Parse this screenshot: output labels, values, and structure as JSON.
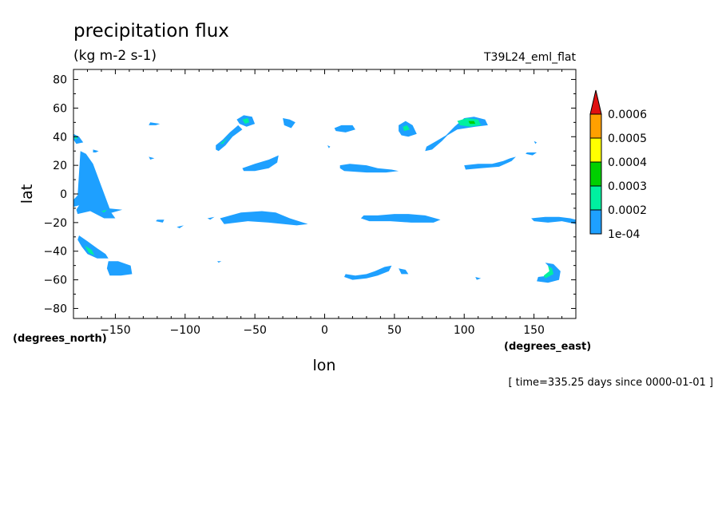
{
  "chart_data": {
    "type": "heatmap",
    "title": "precipitation flux",
    "subtitle": "(kg m-2 s-1)",
    "dataset_label": "T39L24_eml_flat",
    "xlabel": "lon",
    "ylabel": "lat",
    "x_units": "(degrees_east)",
    "y_units": "(degrees_north)",
    "time_label": "[ time=335.25 days since 0000-01-01 ]",
    "xlim": [
      -180,
      180
    ],
    "ylim": [
      -87,
      87
    ],
    "xticks": [
      -150,
      -100,
      -50,
      0,
      50,
      100,
      150
    ],
    "yticks": [
      -80,
      -60,
      -40,
      -20,
      0,
      20,
      40,
      60,
      80
    ],
    "colorbar": {
      "labels": [
        "1e-04",
        "0.0002",
        "0.0003",
        "0.0004",
        "0.0005",
        "0.0006"
      ],
      "colors": [
        "#1ea0ff",
        "#00f0a0",
        "#00d000",
        "#ffff00",
        "#ffa000",
        "#e01010"
      ],
      "extend": "max"
    },
    "regions": [
      {
        "level": 1,
        "points": [
          [
            -180,
            42
          ],
          [
            -176,
            40
          ],
          [
            -173,
            36
          ],
          [
            -178,
            35
          ],
          [
            -180,
            38
          ]
        ]
      },
      {
        "level": 2,
        "points": [
          [
            -179,
            41
          ],
          [
            -177,
            39
          ],
          [
            -179,
            38
          ]
        ]
      },
      {
        "level": 1,
        "points": [
          [
            -166,
            31
          ],
          [
            -162,
            30
          ],
          [
            -164,
            29
          ],
          [
            -166,
            29
          ]
        ]
      },
      {
        "level": 1,
        "points": [
          [
            -175,
            30
          ],
          [
            -171,
            28
          ],
          [
            -166,
            21
          ],
          [
            -153,
            -13
          ],
          [
            -150,
            -17
          ],
          [
            -158,
            -17
          ],
          [
            -168,
            -12
          ],
          [
            -177,
            -14
          ],
          [
            -178,
            -11
          ],
          [
            -176,
            -8
          ],
          [
            -180,
            -9
          ],
          [
            -180,
            -4
          ],
          [
            -177,
            -1
          ]
        ]
      },
      {
        "level": 1,
        "points": [
          [
            -163,
            -11
          ],
          [
            -156,
            -10
          ],
          [
            -145,
            -11
          ],
          [
            -152,
            -13
          ],
          [
            -161,
            -15
          ],
          [
            -165,
            -13
          ]
        ]
      },
      {
        "level": 2,
        "points": [
          [
            -160,
            -12
          ],
          [
            -156,
            -11
          ],
          [
            -158,
            -13
          ]
        ]
      },
      {
        "level": 1,
        "points": [
          [
            -176,
            -29
          ],
          [
            -170,
            -33
          ],
          [
            -163,
            -38
          ],
          [
            -157,
            -42
          ],
          [
            -155,
            -45
          ],
          [
            -163,
            -45
          ],
          [
            -170,
            -42
          ],
          [
            -174,
            -37
          ],
          [
            -177,
            -32
          ]
        ]
      },
      {
        "level": 2,
        "points": [
          [
            -172,
            -36
          ],
          [
            -167,
            -39
          ],
          [
            -165,
            -43
          ],
          [
            -169,
            -41
          ]
        ]
      },
      {
        "level": 1,
        "points": [
          [
            -155,
            -47
          ],
          [
            -148,
            -47
          ],
          [
            -139,
            -50
          ],
          [
            -138,
            -56
          ],
          [
            -146,
            -57
          ],
          [
            -154,
            -57
          ],
          [
            -156,
            -52
          ]
        ]
      },
      {
        "level": 1,
        "points": [
          [
            -78,
            34
          ],
          [
            -73,
            38
          ],
          [
            -68,
            43
          ],
          [
            -62,
            48
          ],
          [
            -59,
            45
          ],
          [
            -66,
            40
          ],
          [
            -71,
            34
          ],
          [
            -76,
            30
          ],
          [
            -78,
            31
          ]
        ]
      },
      {
        "level": 2,
        "points": [
          [
            -75,
            35
          ],
          [
            -70,
            39
          ],
          [
            -66,
            42
          ],
          [
            -69,
            40
          ],
          [
            -73,
            35
          ]
        ]
      },
      {
        "level": 1,
        "points": [
          [
            -63,
            52
          ],
          [
            -58,
            55
          ],
          [
            -52,
            54
          ],
          [
            -50,
            49
          ],
          [
            -56,
            47
          ],
          [
            -61,
            49
          ]
        ]
      },
      {
        "level": 2,
        "points": [
          [
            -59,
            52
          ],
          [
            -55,
            53
          ],
          [
            -54,
            50
          ],
          [
            -57,
            49
          ]
        ]
      },
      {
        "level": 1,
        "points": [
          [
            -30,
            53
          ],
          [
            -25,
            52
          ],
          [
            -21,
            50
          ],
          [
            -24,
            46
          ],
          [
            -29,
            48
          ]
        ]
      },
      {
        "level": 1,
        "points": [
          [
            -59,
            18
          ],
          [
            -50,
            21
          ],
          [
            -40,
            24
          ],
          [
            -33,
            27
          ],
          [
            -34,
            22
          ],
          [
            -40,
            18
          ],
          [
            -50,
            16
          ],
          [
            -58,
            16
          ]
        ]
      },
      {
        "level": 1,
        "points": [
          [
            -125,
            50
          ],
          [
            -118,
            49
          ],
          [
            -121,
            48
          ],
          [
            -126,
            48
          ]
        ]
      },
      {
        "level": 1,
        "points": [
          [
            -126,
            26
          ],
          [
            -122,
            25
          ],
          [
            -125,
            24
          ]
        ]
      },
      {
        "level": 1,
        "points": [
          [
            -75,
            -17
          ],
          [
            -60,
            -13
          ],
          [
            -45,
            -12
          ],
          [
            -35,
            -13
          ],
          [
            -25,
            -17
          ],
          [
            -12,
            -21
          ],
          [
            -20,
            -22
          ],
          [
            -40,
            -20
          ],
          [
            -55,
            -19
          ],
          [
            -72,
            -21
          ]
        ]
      },
      {
        "level": 1,
        "points": [
          [
            -120,
            -18
          ],
          [
            -115,
            -18
          ],
          [
            -116,
            -20
          ],
          [
            -121,
            -19
          ]
        ]
      },
      {
        "level": 1,
        "points": [
          [
            -106,
            -23
          ],
          [
            -101,
            -22
          ],
          [
            -104,
            -24
          ]
        ]
      },
      {
        "level": 1,
        "points": [
          [
            -84,
            -17
          ],
          [
            -79,
            -16
          ],
          [
            -82,
            -18
          ]
        ]
      },
      {
        "level": 1,
        "points": [
          [
            -77,
            -47
          ],
          [
            -74,
            -47
          ],
          [
            -76,
            -48
          ]
        ]
      },
      {
        "level": 1,
        "points": [
          [
            7,
            46
          ],
          [
            12,
            48
          ],
          [
            20,
            48
          ],
          [
            22,
            45
          ],
          [
            15,
            43
          ],
          [
            8,
            44
          ]
        ]
      },
      {
        "level": 1,
        "points": [
          [
            2,
            34
          ],
          [
            4,
            33
          ],
          [
            3,
            32
          ]
        ]
      },
      {
        "level": 1,
        "points": [
          [
            11,
            20
          ],
          [
            18,
            21
          ],
          [
            30,
            20
          ],
          [
            38,
            18
          ],
          [
            48,
            17
          ],
          [
            53,
            16
          ],
          [
            44,
            15
          ],
          [
            30,
            15
          ],
          [
            14,
            16
          ],
          [
            11,
            18
          ]
        ]
      },
      {
        "level": 1,
        "points": [
          [
            28,
            -15
          ],
          [
            38,
            -15
          ],
          [
            50,
            -14
          ],
          [
            60,
            -14
          ],
          [
            72,
            -15
          ],
          [
            83,
            -18
          ],
          [
            78,
            -20
          ],
          [
            62,
            -20
          ],
          [
            47,
            -19
          ],
          [
            32,
            -19
          ],
          [
            26,
            -17
          ]
        ]
      },
      {
        "level": 1,
        "points": [
          [
            15,
            -56
          ],
          [
            22,
            -57
          ],
          [
            30,
            -56
          ],
          [
            36,
            -54
          ],
          [
            43,
            -51
          ],
          [
            48,
            -50
          ],
          [
            46,
            -54
          ],
          [
            38,
            -57
          ],
          [
            30,
            -59
          ],
          [
            20,
            -60
          ],
          [
            14,
            -58
          ]
        ]
      },
      {
        "level": 1,
        "points": [
          [
            53,
            -52
          ],
          [
            58,
            -53
          ],
          [
            60,
            -56
          ],
          [
            55,
            -56
          ]
        ]
      },
      {
        "level": 1,
        "points": [
          [
            53,
            48
          ],
          [
            58,
            51
          ],
          [
            63,
            48
          ],
          [
            66,
            42
          ],
          [
            60,
            40
          ],
          [
            55,
            41
          ],
          [
            53,
            44
          ]
        ]
      },
      {
        "level": 2,
        "points": [
          [
            56,
            47
          ],
          [
            59,
            48
          ],
          [
            61,
            45
          ],
          [
            57,
            44
          ]
        ]
      },
      {
        "level": 1,
        "points": [
          [
            73,
            33
          ],
          [
            80,
            37
          ],
          [
            87,
            41
          ],
          [
            93,
            47
          ],
          [
            100,
            53
          ],
          [
            107,
            54
          ],
          [
            115,
            52
          ],
          [
            117,
            48
          ],
          [
            108,
            47
          ],
          [
            95,
            45
          ],
          [
            88,
            41
          ],
          [
            84,
            37
          ],
          [
            77,
            31
          ],
          [
            72,
            30
          ]
        ]
      },
      {
        "level": 2,
        "points": [
          [
            95,
            51
          ],
          [
            102,
            53
          ],
          [
            110,
            52
          ],
          [
            112,
            48
          ],
          [
            104,
            47
          ],
          [
            97,
            48
          ]
        ]
      },
      {
        "level": 3,
        "points": [
          [
            103,
            51
          ],
          [
            107,
            51
          ],
          [
            108,
            49
          ],
          [
            104,
            49
          ]
        ]
      },
      {
        "level": 1,
        "points": [
          [
            100,
            20
          ],
          [
            110,
            21
          ],
          [
            120,
            21
          ],
          [
            128,
            23
          ],
          [
            133,
            25
          ],
          [
            137,
            26
          ],
          [
            134,
            23
          ],
          [
            125,
            19
          ],
          [
            112,
            18
          ],
          [
            101,
            17
          ]
        ]
      },
      {
        "level": 1,
        "points": [
          [
            145,
            29
          ],
          [
            152,
            29
          ],
          [
            149,
            27
          ],
          [
            144,
            28
          ]
        ]
      },
      {
        "level": 1,
        "points": [
          [
            150,
            37
          ],
          [
            152,
            36
          ],
          [
            151,
            35
          ]
        ]
      },
      {
        "level": 1,
        "points": [
          [
            148,
            -17
          ],
          [
            158,
            -16
          ],
          [
            168,
            -16
          ],
          [
            176,
            -17
          ],
          [
            180,
            -18
          ],
          [
            180,
            -21
          ],
          [
            170,
            -19
          ],
          [
            160,
            -20
          ],
          [
            150,
            -19
          ]
        ]
      },
      {
        "level": 1,
        "points": [
          [
            158,
            -48
          ],
          [
            164,
            -49
          ],
          [
            169,
            -54
          ],
          [
            168,
            -60
          ],
          [
            160,
            -62
          ],
          [
            152,
            -61
          ],
          [
            153,
            -58
          ],
          [
            161,
            -57
          ],
          [
            162,
            -52
          ]
        ]
      },
      {
        "level": 2,
        "points": [
          [
            160,
            -50
          ],
          [
            163,
            -52
          ],
          [
            164,
            -56
          ],
          [
            158,
            -59
          ],
          [
            157,
            -57
          ],
          [
            161,
            -54
          ]
        ]
      },
      {
        "level": 1,
        "points": [
          [
            108,
            -58
          ],
          [
            112,
            -59
          ],
          [
            109,
            -60
          ]
        ]
      }
    ]
  }
}
